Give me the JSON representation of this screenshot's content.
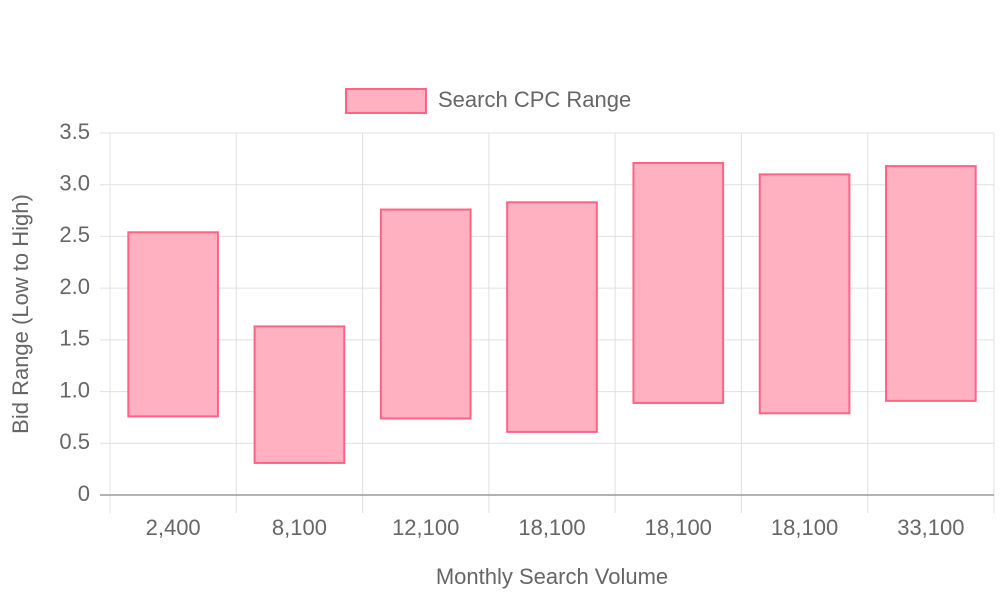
{
  "chart_data": {
    "type": "floating-bar",
    "x_label": "Monthly Search Volume",
    "y_label": "Bid Range (Low to High)",
    "categories": [
      "2,400",
      "8,100",
      "12,100",
      "18,100",
      "18,100",
      "18,100",
      "33,100"
    ],
    "series": [
      {
        "name": "Search CPC Range",
        "color": "#ff6384",
        "fill": "#ffb1c1",
        "values": [
          [
            0.76,
            2.54
          ],
          [
            0.31,
            1.63
          ],
          [
            0.74,
            2.76
          ],
          [
            0.61,
            2.83
          ],
          [
            0.89,
            3.21
          ],
          [
            0.79,
            3.1
          ],
          [
            0.91,
            3.18
          ]
        ]
      }
    ],
    "ylim": [
      0,
      3.5
    ],
    "yticks": [
      0,
      0.5,
      {
        "value": 1,
        "label": "1.0"
      },
      1.5,
      {
        "value": 2,
        "label": "2.0"
      },
      2.5,
      {
        "value": 3,
        "label": "3.0"
      },
      3.5
    ],
    "grid": true,
    "legend": "top"
  }
}
